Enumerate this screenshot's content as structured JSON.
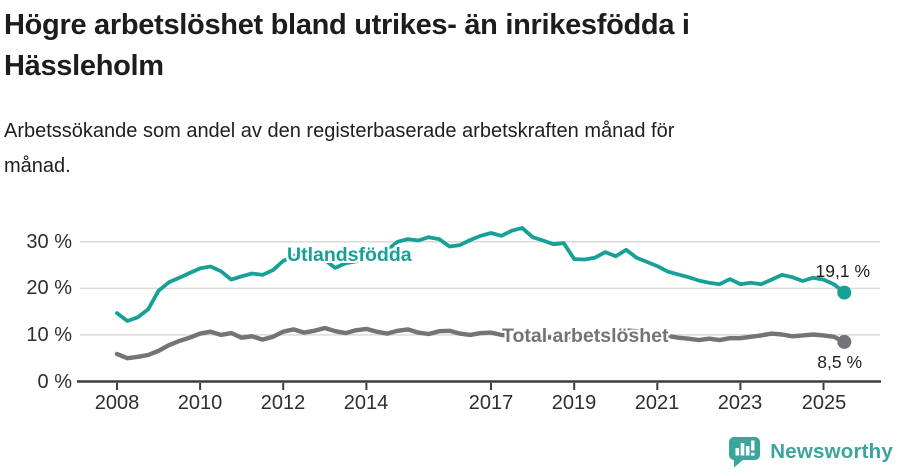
{
  "header": {
    "title_line1": "Högre arbetslöshet bland utrikes- än inrikesfödda i",
    "title_line2": "Hässleholm",
    "subtitle_line1": "Arbetssökande som andel av den registerbaserade arbetskraften månad för",
    "subtitle_line2": "månad."
  },
  "chart_data": {
    "type": "line",
    "title": "Högre arbetslöshet bland utrikes- än inrikesfödda i Hässleholm",
    "subtitle": "Arbetssökande som andel av den registerbaserade arbetskraften månad för månad.",
    "xlabel": "",
    "ylabel": "",
    "x_unit": "year",
    "y_unit": "%",
    "ylim": [
      0,
      34
    ],
    "xlim": [
      2008,
      2025.6
    ],
    "grid": "horizontal-only",
    "legend_position": "inline-labels-on-lines",
    "x_ticks": [
      2008,
      2010,
      2012,
      2014,
      2017,
      2019,
      2021,
      2023,
      2025
    ],
    "x_tick_labels": [
      "2008",
      "2010",
      "2012",
      "2014",
      "2017",
      "2019",
      "2021",
      "2023",
      "2025"
    ],
    "y_ticks": [
      0,
      10,
      20,
      30
    ],
    "y_tick_labels": [
      "0 %",
      "10 %",
      "20 %",
      "30 %"
    ],
    "colors": {
      "grid": "#d9d9d9",
      "axis": "#3d3d3d",
      "tick_text": "#2e2e2e"
    },
    "x": [
      2008,
      2008.25,
      2008.5,
      2008.75,
      2009,
      2009.25,
      2009.5,
      2009.75,
      2010,
      2010.25,
      2010.5,
      2010.75,
      2011,
      2011.25,
      2011.5,
      2011.75,
      2012,
      2012.25,
      2012.5,
      2012.75,
      2013,
      2013.25,
      2013.5,
      2013.75,
      2014,
      2014.25,
      2014.5,
      2014.75,
      2015,
      2015.25,
      2015.5,
      2015.75,
      2016,
      2016.25,
      2016.5,
      2016.75,
      2017,
      2017.25,
      2017.5,
      2017.75,
      2018,
      2018.25,
      2018.5,
      2018.75,
      2019,
      2019.25,
      2019.5,
      2019.75,
      2020,
      2020.25,
      2020.5,
      2020.75,
      2021,
      2021.25,
      2021.5,
      2021.75,
      2022,
      2022.25,
      2022.5,
      2022.75,
      2023,
      2023.25,
      2023.5,
      2023.75,
      2024,
      2024.25,
      2024.5,
      2024.75,
      2025,
      2025.25,
      2025.5
    ],
    "series": [
      {
        "name": "Utlandsfödda",
        "color": "#16a096",
        "end_label": "19,1 %",
        "end_value": 19.1,
        "values": [
          14.7,
          13.0,
          13.8,
          15.5,
          19.5,
          21.3,
          22.3,
          23.3,
          24.3,
          24.7,
          23.7,
          21.9,
          22.6,
          23.2,
          22.9,
          23.9,
          25.9,
          27.0,
          26.6,
          26.0,
          26.1,
          24.4,
          25.4,
          25.8,
          26.2,
          26.8,
          28.2,
          30.0,
          30.6,
          30.3,
          31.0,
          30.6,
          29.0,
          29.3,
          30.4,
          31.3,
          31.9,
          31.3,
          32.4,
          33.0,
          31.0,
          30.3,
          29.5,
          29.7,
          26.3,
          26.2,
          26.6,
          27.8,
          26.9,
          28.3,
          26.6,
          25.7,
          24.8,
          23.6,
          23.0,
          22.4,
          21.7,
          21.2,
          20.9,
          22.0,
          20.9,
          21.2,
          20.9,
          21.9,
          22.9,
          22.4,
          21.6,
          22.3,
          21.9,
          20.9,
          19.1
        ]
      },
      {
        "name": "Total arbetslöshet",
        "color": "#73737a",
        "end_label": "8,5 %",
        "end_value": 8.5,
        "values": [
          5.9,
          5.0,
          5.3,
          5.7,
          6.6,
          7.8,
          8.7,
          9.4,
          10.3,
          10.7,
          10.0,
          10.4,
          9.4,
          9.7,
          9.0,
          9.6,
          10.7,
          11.2,
          10.5,
          10.9,
          11.5,
          10.8,
          10.4,
          11.0,
          11.3,
          10.7,
          10.3,
          10.9,
          11.2,
          10.5,
          10.2,
          10.8,
          10.9,
          10.3,
          10.0,
          10.4,
          10.5,
          10.0,
          9.8,
          10.1,
          10.0,
          9.6,
          9.4,
          9.7,
          9.5,
          9.2,
          9.4,
          9.8,
          10.0,
          11.0,
          10.8,
          10.4,
          10.2,
          9.8,
          9.4,
          9.2,
          8.9,
          9.2,
          8.9,
          9.3,
          9.3,
          9.6,
          9.9,
          10.3,
          10.1,
          9.7,
          9.9,
          10.1,
          9.9,
          9.6,
          8.5
        ]
      }
    ]
  },
  "branding": {
    "logo_icon": "newsworthy-speech-bubble-bar-chart-icon",
    "name": "Newsworthy",
    "brand_color": "#3ba49c"
  }
}
